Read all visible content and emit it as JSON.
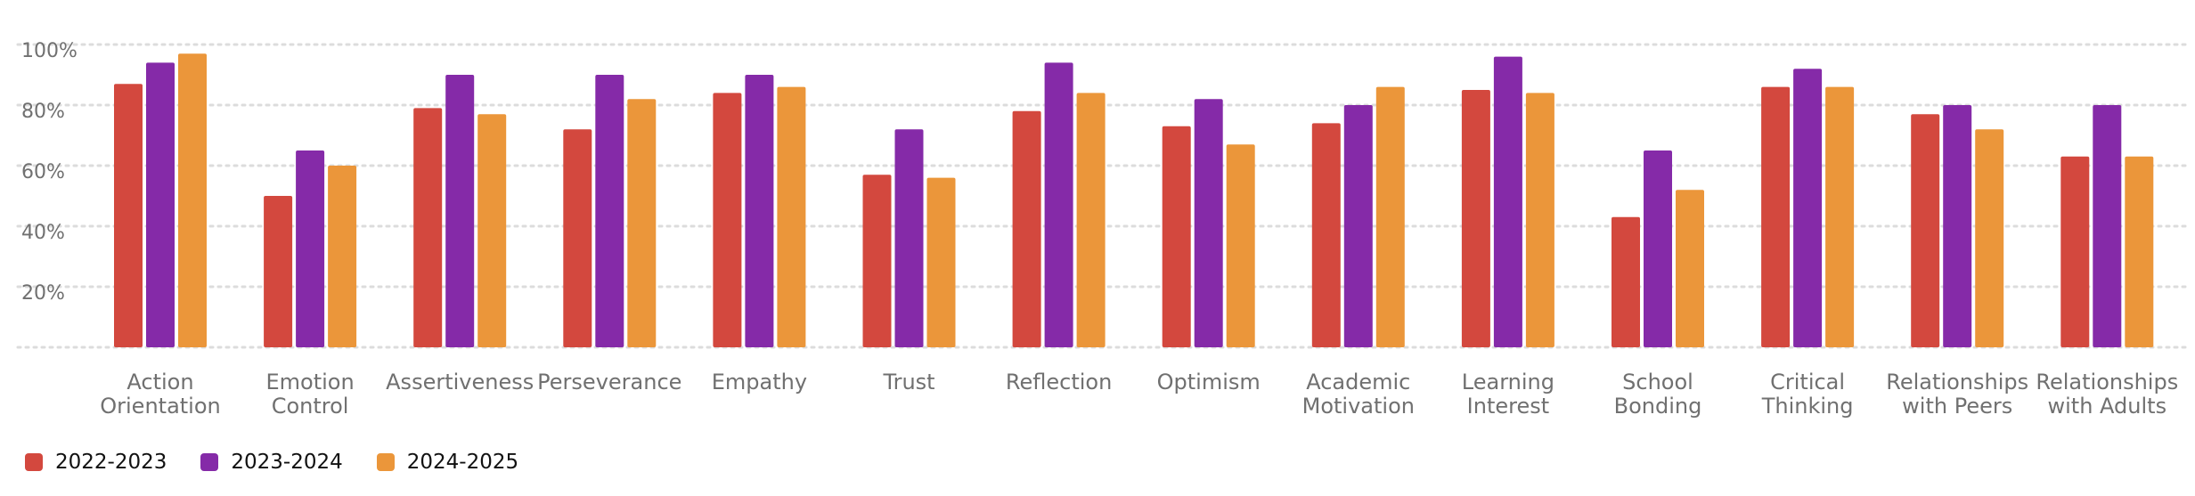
{
  "chart_data": {
    "type": "bar",
    "categories": [
      [
        "Action",
        "Orientation"
      ],
      [
        "Emotion",
        "Control"
      ],
      [
        "Assertiveness"
      ],
      [
        "Perseverance"
      ],
      [
        "Empathy"
      ],
      [
        "Trust"
      ],
      [
        "Reflection"
      ],
      [
        "Optimism"
      ],
      [
        "Academic",
        "Motivation"
      ],
      [
        "Learning",
        "Interest"
      ],
      [
        "School",
        "Bonding"
      ],
      [
        "Critical",
        "Thinking"
      ],
      [
        "Relationships",
        "with Peers"
      ],
      [
        "Relationships",
        "with Adults"
      ]
    ],
    "series": [
      {
        "name": "2022-2023",
        "color": "#d3483e",
        "values": [
          87,
          50,
          79,
          72,
          84,
          57,
          78,
          73,
          74,
          85,
          43,
          86,
          77,
          63
        ]
      },
      {
        "name": "2023-2024",
        "color": "#852aa8",
        "values": [
          94,
          65,
          90,
          90,
          90,
          72,
          94,
          82,
          80,
          96,
          65,
          92,
          80,
          80
        ]
      },
      {
        "name": "2024-2025",
        "color": "#eb963a",
        "values": [
          97,
          60,
          77,
          82,
          86,
          56,
          84,
          67,
          86,
          84,
          52,
          86,
          72,
          63
        ]
      }
    ],
    "yticks": [
      "20%",
      "40%",
      "60%",
      "80%",
      "100%"
    ],
    "ylim": [
      0,
      100
    ],
    "grid": true,
    "legend_position": "bottom-left"
  }
}
